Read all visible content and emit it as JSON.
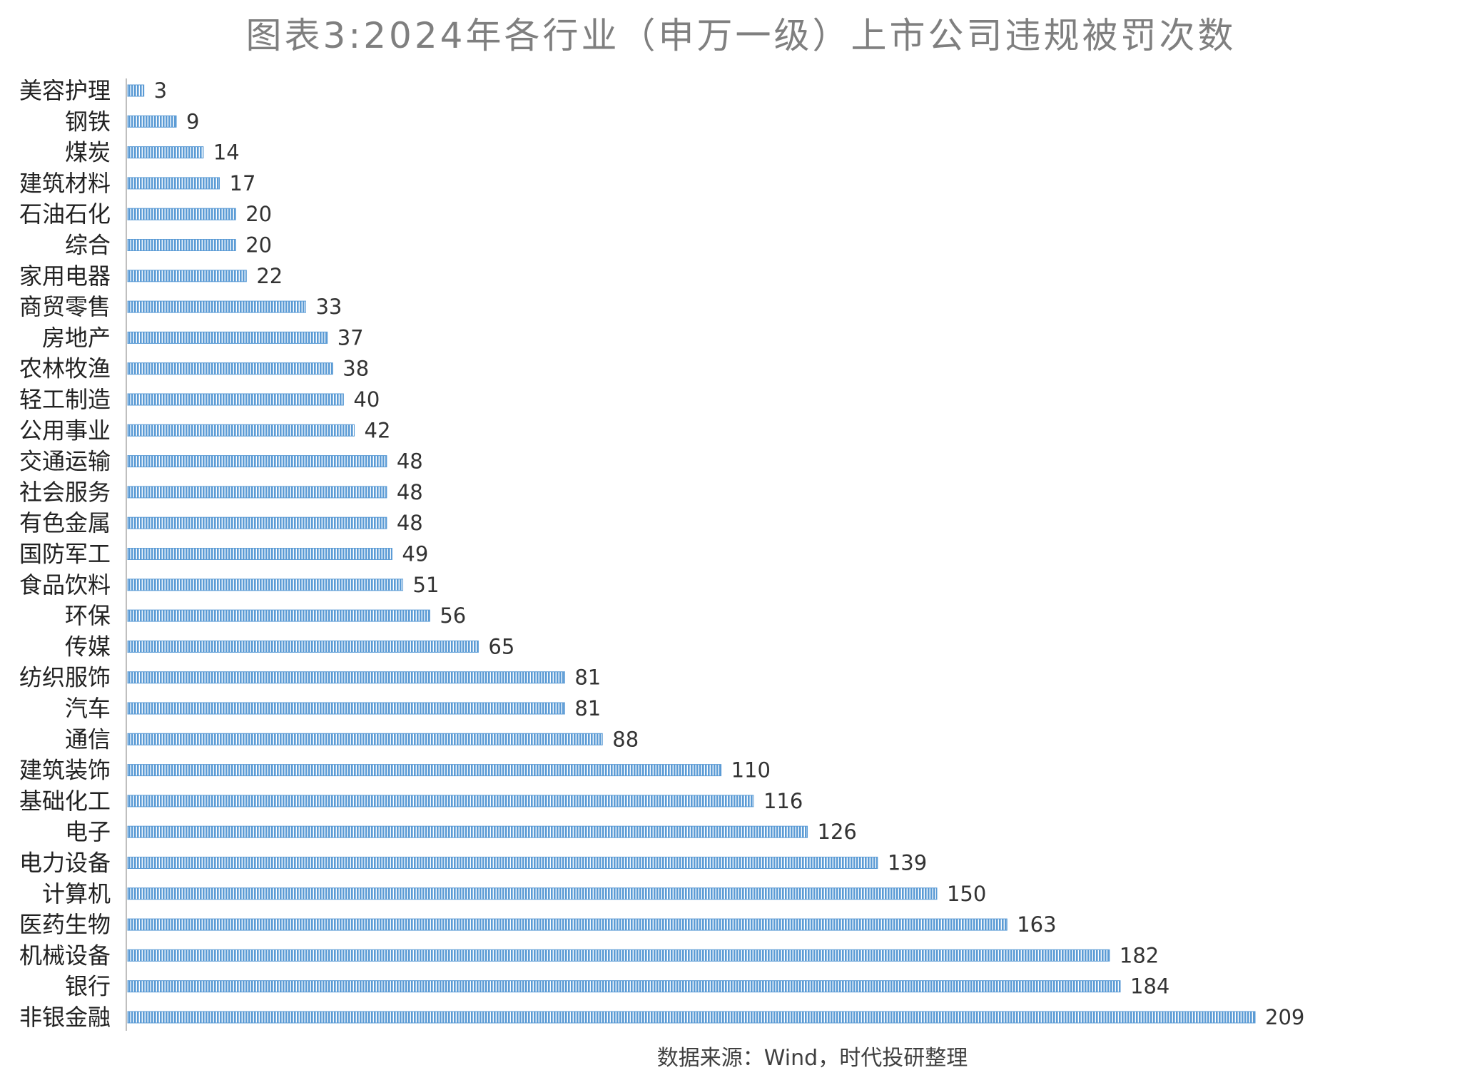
{
  "chart_data": {
    "type": "bar",
    "orientation": "horizontal",
    "title": "图表3:2024年各行业（申万一级）上市公司违规被罚次数",
    "source": "数据来源：Wind，时代投研整理",
    "categories": [
      "美容护理",
      "钢铁",
      "煤炭",
      "建筑材料",
      "石油石化",
      "综合",
      "家用电器",
      "商贸零售",
      "房地产",
      "农林牧渔",
      "轻工制造",
      "公用事业",
      "交通运输",
      "社会服务",
      "有色金属",
      "国防军工",
      "食品饮料",
      "环保",
      "传媒",
      "纺织服饰",
      "汽车",
      "通信",
      "建筑装饰",
      "基础化工",
      "电子",
      "电力设备",
      "计算机",
      "医药生物",
      "机械设备",
      "银行",
      "非银金融"
    ],
    "values": [
      3,
      9,
      14,
      17,
      20,
      20,
      22,
      33,
      37,
      38,
      40,
      42,
      48,
      48,
      48,
      49,
      51,
      56,
      65,
      81,
      81,
      88,
      110,
      116,
      126,
      139,
      150,
      163,
      182,
      184,
      209
    ],
    "xlim": [
      0,
      209
    ],
    "grid": false,
    "legend": "none",
    "bar_color": "#5b9bd5",
    "bar_stripe_color": "#ffffff"
  }
}
